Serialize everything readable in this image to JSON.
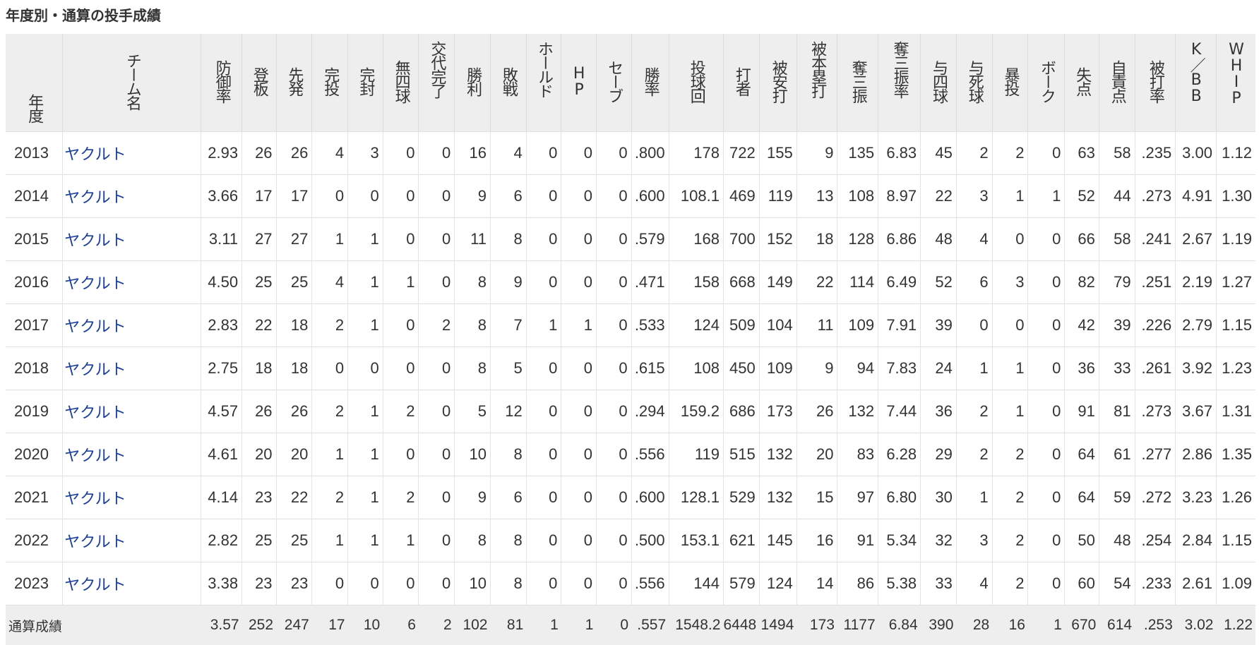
{
  "title": "年度別・通算の投手成績",
  "columns": [
    "年度",
    "チーム名",
    "防御率",
    "登板",
    "先発",
    "完投",
    "完封",
    "無四球",
    "交代完了",
    "勝利",
    "敗戦",
    "ホールド",
    "HP",
    "セーブ",
    "勝率",
    "投球回",
    "打者",
    "被安打",
    "被本塁打",
    "奪三振",
    "奪三振率",
    "与四球",
    "与死球",
    "暴投",
    "ボーク",
    "失点",
    "自責点",
    "被打率",
    "K／BB",
    "WHIP"
  ],
  "rows": [
    {
      "year": "2013",
      "team": "ヤクルト",
      "stats": [
        "2.93",
        "26",
        "26",
        "4",
        "3",
        "0",
        "0",
        "16",
        "4",
        "0",
        "0",
        "0",
        ".800",
        "178",
        "722",
        "155",
        "9",
        "135",
        "6.83",
        "45",
        "2",
        "2",
        "0",
        "63",
        "58",
        ".235",
        "3.00",
        "1.12"
      ]
    },
    {
      "year": "2014",
      "team": "ヤクルト",
      "stats": [
        "3.66",
        "17",
        "17",
        "0",
        "0",
        "0",
        "0",
        "9",
        "6",
        "0",
        "0",
        "0",
        ".600",
        "108.1",
        "469",
        "119",
        "13",
        "108",
        "8.97",
        "22",
        "3",
        "1",
        "1",
        "52",
        "44",
        ".273",
        "4.91",
        "1.30"
      ]
    },
    {
      "year": "2015",
      "team": "ヤクルト",
      "stats": [
        "3.11",
        "27",
        "27",
        "1",
        "1",
        "0",
        "0",
        "11",
        "8",
        "0",
        "0",
        "0",
        ".579",
        "168",
        "700",
        "152",
        "18",
        "128",
        "6.86",
        "48",
        "4",
        "0",
        "0",
        "66",
        "58",
        ".241",
        "2.67",
        "1.19"
      ]
    },
    {
      "year": "2016",
      "team": "ヤクルト",
      "stats": [
        "4.50",
        "25",
        "25",
        "4",
        "1",
        "1",
        "0",
        "8",
        "9",
        "0",
        "0",
        "0",
        ".471",
        "158",
        "668",
        "149",
        "22",
        "114",
        "6.49",
        "52",
        "6",
        "3",
        "0",
        "82",
        "79",
        ".251",
        "2.19",
        "1.27"
      ]
    },
    {
      "year": "2017",
      "team": "ヤクルト",
      "stats": [
        "2.83",
        "22",
        "18",
        "2",
        "1",
        "0",
        "2",
        "8",
        "7",
        "1",
        "1",
        "0",
        ".533",
        "124",
        "509",
        "104",
        "11",
        "109",
        "7.91",
        "39",
        "0",
        "0",
        "0",
        "42",
        "39",
        ".226",
        "2.79",
        "1.15"
      ]
    },
    {
      "year": "2018",
      "team": "ヤクルト",
      "stats": [
        "2.75",
        "18",
        "18",
        "0",
        "0",
        "0",
        "0",
        "8",
        "5",
        "0",
        "0",
        "0",
        ".615",
        "108",
        "450",
        "109",
        "9",
        "94",
        "7.83",
        "24",
        "1",
        "1",
        "0",
        "36",
        "33",
        ".261",
        "3.92",
        "1.23"
      ]
    },
    {
      "year": "2019",
      "team": "ヤクルト",
      "stats": [
        "4.57",
        "26",
        "26",
        "2",
        "1",
        "2",
        "0",
        "5",
        "12",
        "0",
        "0",
        "0",
        ".294",
        "159.2",
        "686",
        "173",
        "26",
        "132",
        "7.44",
        "36",
        "2",
        "1",
        "0",
        "91",
        "81",
        ".273",
        "3.67",
        "1.31"
      ]
    },
    {
      "year": "2020",
      "team": "ヤクルト",
      "stats": [
        "4.61",
        "20",
        "20",
        "1",
        "1",
        "0",
        "0",
        "10",
        "8",
        "0",
        "0",
        "0",
        ".556",
        "119",
        "515",
        "132",
        "20",
        "83",
        "6.28",
        "29",
        "2",
        "2",
        "0",
        "64",
        "61",
        ".277",
        "2.86",
        "1.35"
      ]
    },
    {
      "year": "2021",
      "team": "ヤクルト",
      "stats": [
        "4.14",
        "23",
        "22",
        "2",
        "1",
        "2",
        "0",
        "9",
        "6",
        "0",
        "0",
        "0",
        ".600",
        "128.1",
        "529",
        "132",
        "15",
        "97",
        "6.80",
        "30",
        "1",
        "2",
        "0",
        "64",
        "59",
        ".272",
        "3.23",
        "1.26"
      ]
    },
    {
      "year": "2022",
      "team": "ヤクルト",
      "stats": [
        "2.82",
        "25",
        "25",
        "1",
        "1",
        "1",
        "0",
        "8",
        "8",
        "0",
        "0",
        "0",
        ".500",
        "153.1",
        "621",
        "145",
        "16",
        "91",
        "5.34",
        "32",
        "3",
        "2",
        "0",
        "50",
        "48",
        ".254",
        "2.84",
        "1.15"
      ]
    },
    {
      "year": "2023",
      "team": "ヤクルト",
      "stats": [
        "3.38",
        "23",
        "23",
        "0",
        "0",
        "0",
        "0",
        "10",
        "8",
        "0",
        "0",
        "0",
        ".556",
        "144",
        "579",
        "124",
        "14",
        "86",
        "5.38",
        "33",
        "4",
        "2",
        "0",
        "60",
        "54",
        ".233",
        "2.61",
        "1.09"
      ]
    }
  ],
  "total": {
    "label": "通算成績",
    "stats": [
      "3.57",
      "252",
      "247",
      "17",
      "10",
      "6",
      "2",
      "102",
      "81",
      "1",
      "1",
      "0",
      ".557",
      "1548.2",
      "6448",
      "1494",
      "173",
      "1177",
      "6.84",
      "390",
      "28",
      "16",
      "1",
      "670",
      "614",
      ".253",
      "3.02",
      "1.22"
    ]
  },
  "colors": {
    "header_bg": "#eeeeee",
    "team_link": "#1a3f9c",
    "border": "#dddddd"
  }
}
